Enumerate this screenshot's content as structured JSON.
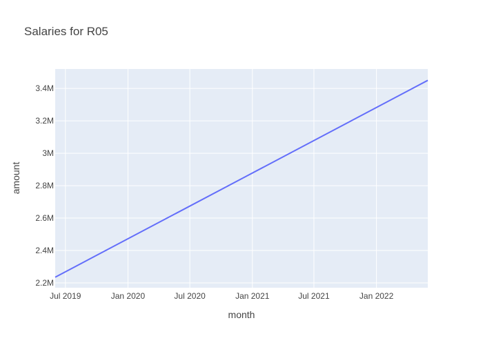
{
  "chart_data": {
    "type": "line",
    "title": "Salaries for R05",
    "xlabel": "month",
    "ylabel": "amount",
    "x_ticks": [
      {
        "date": "2019-07-01",
        "label": "Jul 2019"
      },
      {
        "date": "2020-01-01",
        "label": "Jan 2020"
      },
      {
        "date": "2020-07-01",
        "label": "Jul 2020"
      },
      {
        "date": "2021-01-01",
        "label": "Jan 2021"
      },
      {
        "date": "2021-07-01",
        "label": "Jul 2021"
      },
      {
        "date": "2022-01-01",
        "label": "Jan 2022"
      }
    ],
    "y_ticks": [
      {
        "value": 2200000,
        "label": "2.2M"
      },
      {
        "value": 2400000,
        "label": "2.4M"
      },
      {
        "value": 2600000,
        "label": "2.6M"
      },
      {
        "value": 2800000,
        "label": "2.8M"
      },
      {
        "value": 3000000,
        "label": "3M"
      },
      {
        "value": 3200000,
        "label": "3.2M"
      },
      {
        "value": 3400000,
        "label": "3.4M"
      }
    ],
    "xlim": [
      "2019-06-01",
      "2022-06-01"
    ],
    "ylim": [
      2170000,
      3520000
    ],
    "grid": true,
    "series": [
      {
        "color": "#636efa",
        "x": [
          "2019-06-01",
          "2022-06-01"
        ],
        "y": [
          2235000,
          3450000
        ]
      }
    ]
  },
  "colors": {
    "plot_background": "#e5ecf6",
    "grid": "#ffffff",
    "text": "#444444",
    "line": "#636efa"
  }
}
